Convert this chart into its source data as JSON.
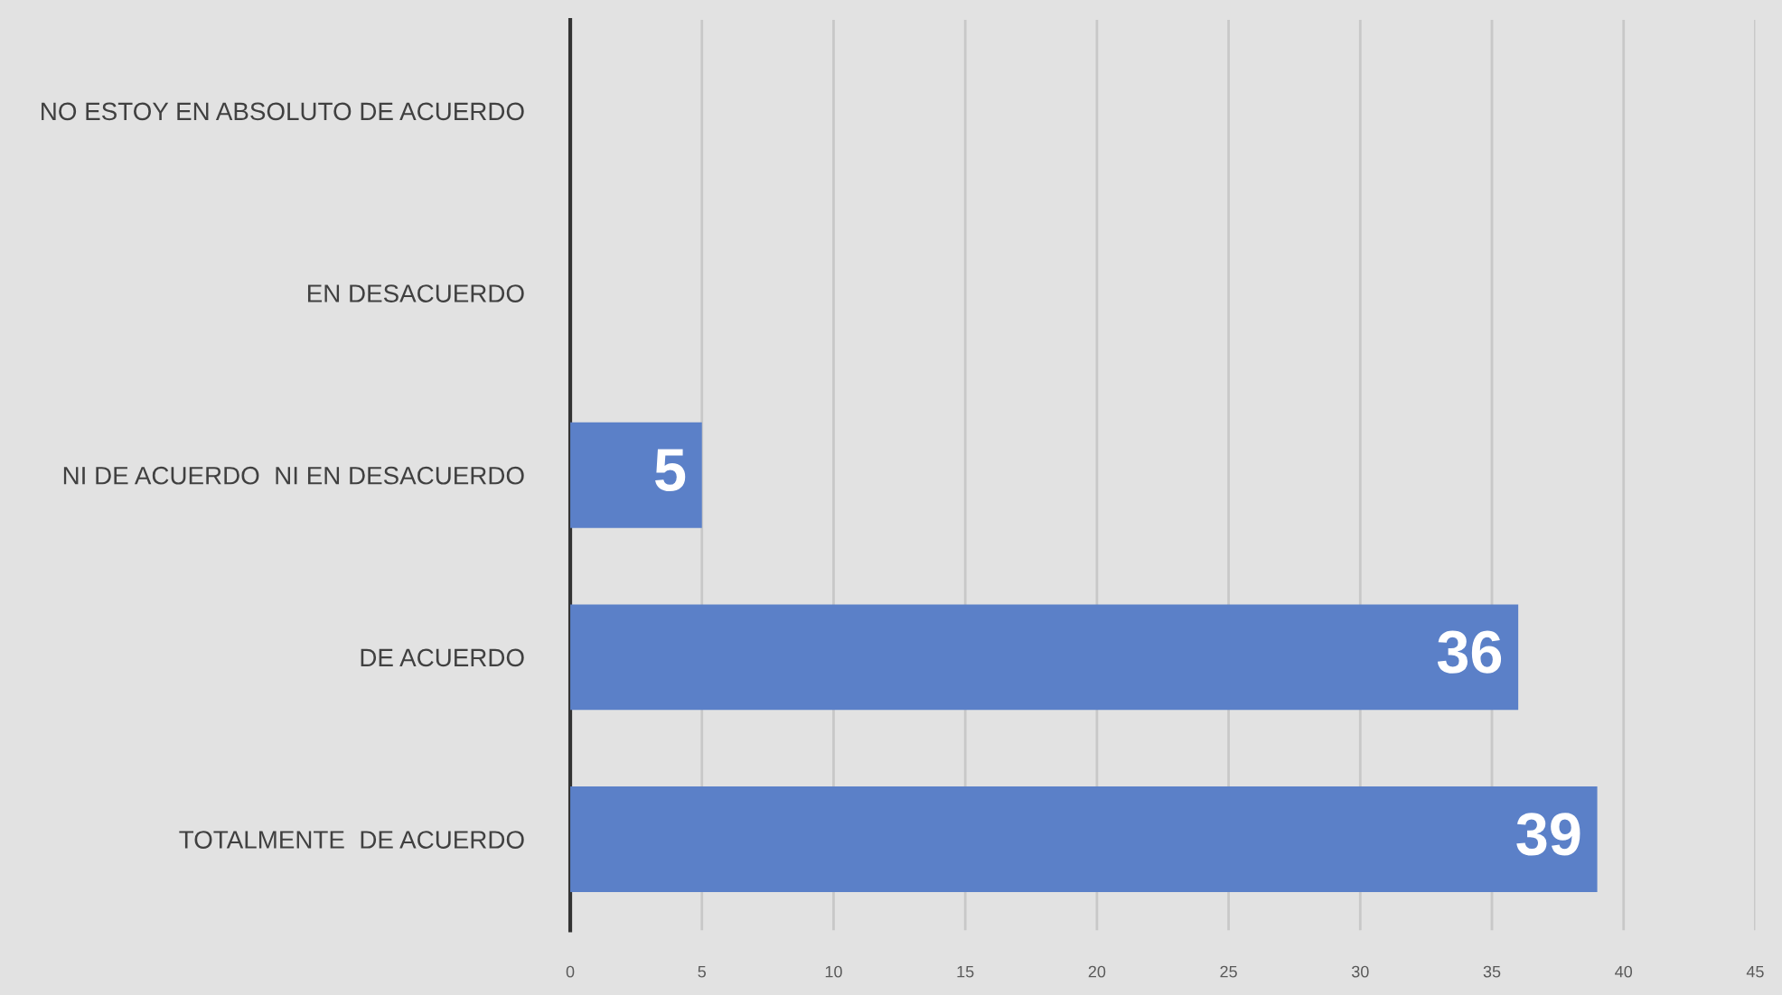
{
  "chart_data": {
    "type": "bar",
    "orientation": "horizontal",
    "categories": [
      "NO ESTOY EN ABSOLUTO DE ACUERDO",
      "EN DESACUERDO",
      "NI DE ACUERDO  NI EN DESACUERDO",
      "DE ACUERDO",
      "TOTALMENTE  DE ACUERDO"
    ],
    "values": [
      0,
      0,
      5,
      36,
      39
    ],
    "value_labels": [
      null,
      null,
      "5",
      "36",
      "39"
    ],
    "color": "#5b80c8",
    "xlim": [
      0,
      45
    ],
    "xticks": [
      0,
      5,
      10,
      15,
      20,
      25,
      30,
      35,
      40,
      45
    ],
    "grid": "x"
  }
}
